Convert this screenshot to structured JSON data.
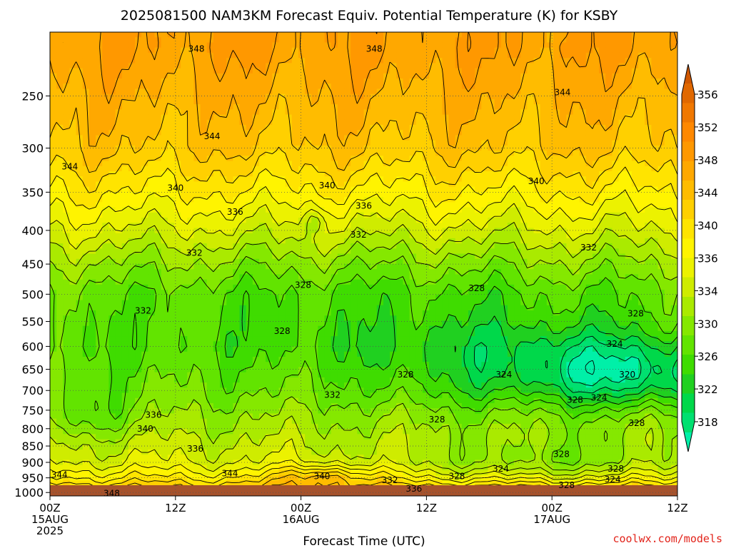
{
  "chart_data": {
    "type": "heatmap",
    "title": "2025081500 NAM3KM Forecast Equiv. Potential Temperature (K) for KSBY",
    "xlabel": "Forecast Time (UTC)",
    "ylabel": "",
    "y_scale": "log",
    "y_inverted": true,
    "x_ticks": [
      {
        "hour": 0,
        "lines": [
          "00Z",
          "15AUG",
          "2025"
        ]
      },
      {
        "hour": 12,
        "lines": [
          "12Z"
        ]
      },
      {
        "hour": 24,
        "lines": [
          "00Z",
          "16AUG"
        ]
      },
      {
        "hour": 36,
        "lines": [
          "12Z"
        ]
      },
      {
        "hour": 48,
        "lines": [
          "00Z",
          "17AUG"
        ]
      },
      {
        "hour": 60,
        "lines": [
          "12Z"
        ]
      }
    ],
    "y_ticks": [
      250,
      300,
      350,
      400,
      450,
      500,
      550,
      600,
      650,
      700,
      750,
      800,
      850,
      900,
      950,
      1000
    ],
    "xlim": [
      0,
      60
    ],
    "ylim_hPa": [
      1012,
      200
    ],
    "grid": true,
    "colorbar": {
      "levels": [
        318,
        320,
        322,
        324,
        326,
        328,
        330,
        332,
        334,
        336,
        338,
        340,
        342,
        344,
        346,
        348,
        350,
        352,
        354,
        356
      ],
      "tick_labels": [
        "318",
        "322",
        "326",
        "330",
        "334",
        "336",
        "340",
        "344",
        "348",
        "352",
        "356"
      ],
      "colors": [
        "#00f0a8",
        "#00e070",
        "#00d84a",
        "#20d020",
        "#3fdc00",
        "#62e400",
        "#85e800",
        "#aaea00",
        "#cfec00",
        "#ecf200",
        "#fff400",
        "#ffe400",
        "#ffd000",
        "#ffbc00",
        "#ffa800",
        "#ff9800",
        "#ff8800",
        "#f07800",
        "#e06800",
        "#d05800"
      ]
    },
    "theta_e_by_pressure": [
      {
        "hPa": 210,
        "K": 348
      },
      {
        "hPa": 250,
        "K": 346
      },
      {
        "hPa": 300,
        "K": 344
      },
      {
        "hPa": 350,
        "K": 340
      },
      {
        "hPa": 400,
        "K": 336
      },
      {
        "hPa": 450,
        "K": 332
      },
      {
        "hPa": 500,
        "K": 329
      },
      {
        "hPa": 600,
        "K": 328
      },
      {
        "hPa": 700,
        "K": 330
      },
      {
        "hPa": 800,
        "K": 333
      },
      {
        "hPa": 900,
        "K": 336
      },
      {
        "hPa": 950,
        "K": 340
      },
      {
        "hPa": 1000,
        "K": 346
      }
    ],
    "contour_labels": [
      {
        "text": "348",
        "hour": 14,
        "hPa": 212
      },
      {
        "text": "348",
        "hour": 31,
        "hPa": 212
      },
      {
        "text": "344",
        "hour": 49,
        "hPa": 247
      },
      {
        "text": "344",
        "hour": 15.5,
        "hPa": 288
      },
      {
        "text": "344",
        "hour": 1.9,
        "hPa": 320
      },
      {
        "text": "340",
        "hour": 12,
        "hPa": 345
      },
      {
        "text": "340",
        "hour": 26.5,
        "hPa": 342
      },
      {
        "text": "340",
        "hour": 46.5,
        "hPa": 337
      },
      {
        "text": "336",
        "hour": 17.7,
        "hPa": 375
      },
      {
        "text": "336",
        "hour": 30,
        "hPa": 367
      },
      {
        "text": "332",
        "hour": 29.5,
        "hPa": 406
      },
      {
        "text": "332",
        "hour": 13.8,
        "hPa": 433
      },
      {
        "text": "332",
        "hour": 51.5,
        "hPa": 425
      },
      {
        "text": "328",
        "hour": 24.2,
        "hPa": 484
      },
      {
        "text": "328",
        "hour": 40.8,
        "hPa": 490
      },
      {
        "text": "332",
        "hour": 8.9,
        "hPa": 530
      },
      {
        "text": "328",
        "hour": 22.2,
        "hPa": 569
      },
      {
        "text": "328",
        "hour": 56,
        "hPa": 535
      },
      {
        "text": "324",
        "hour": 54,
        "hPa": 595
      },
      {
        "text": "328",
        "hour": 34,
        "hPa": 662
      },
      {
        "text": "324",
        "hour": 43.4,
        "hPa": 662
      },
      {
        "text": "320",
        "hour": 55.2,
        "hPa": 662
      },
      {
        "text": "332",
        "hour": 27,
        "hPa": 711
      },
      {
        "text": "328",
        "hour": 50.2,
        "hPa": 724
      },
      {
        "text": "324",
        "hour": 52.5,
        "hPa": 718
      },
      {
        "text": "336",
        "hour": 9.9,
        "hPa": 762
      },
      {
        "text": "328",
        "hour": 37,
        "hPa": 775
      },
      {
        "text": "328",
        "hour": 56.1,
        "hPa": 785
      },
      {
        "text": "340",
        "hour": 9.1,
        "hPa": 800
      },
      {
        "text": "336",
        "hour": 13.9,
        "hPa": 858
      },
      {
        "text": "328",
        "hour": 48.9,
        "hPa": 875
      },
      {
        "text": "324",
        "hour": 43.1,
        "hPa": 920
      },
      {
        "text": "328",
        "hour": 54.1,
        "hPa": 920
      },
      {
        "text": "344",
        "hour": 0.9,
        "hPa": 940
      },
      {
        "text": "344",
        "hour": 17.2,
        "hPa": 935
      },
      {
        "text": "340",
        "hour": 26,
        "hPa": 945
      },
      {
        "text": "328",
        "hour": 38.9,
        "hPa": 945
      },
      {
        "text": "332",
        "hour": 32.5,
        "hPa": 958
      },
      {
        "text": "324",
        "hour": 53.8,
        "hPa": 955
      },
      {
        "text": "328",
        "hour": 49.4,
        "hPa": 975
      },
      {
        "text": "336",
        "hour": 34.8,
        "hPa": 987
      },
      {
        "text": "348",
        "hour": 5.9,
        "hPa": 1003
      }
    ],
    "surface_band": "ground"
  },
  "credit": "coolwx.com/models",
  "colors": {
    "ground": "#a6522c",
    "contour": "#000000",
    "grid": "#555555"
  }
}
